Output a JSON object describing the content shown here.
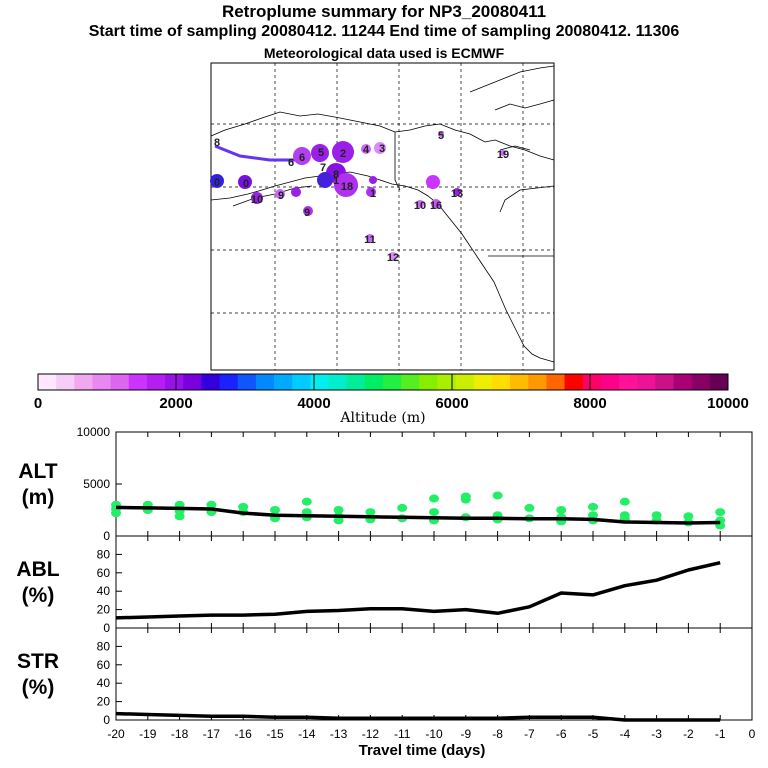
{
  "title": {
    "line1": "Retroplume summary for NP3_20080411",
    "line2": "Start time of sampling 20080412. 11244     End time of sampling 20080412. 11306",
    "line3": "Meteorological data used is ECMWF"
  },
  "colors": {
    "alt_points": "#22ee66",
    "line": "#000000",
    "plume_purple": "#a020f0",
    "plume_violet": "#cc33ff",
    "plume_blue": "#4422dd"
  },
  "chart_data": [
    {
      "type": "map",
      "title": "Plume centroid positions",
      "labels": [
        {
          "text": "0"
        },
        {
          "text": "0"
        },
        {
          "text": "1"
        },
        {
          "text": "1"
        },
        {
          "text": "2"
        },
        {
          "text": "3"
        },
        {
          "text": "4"
        },
        {
          "text": "5"
        },
        {
          "text": "5"
        },
        {
          "text": "6"
        },
        {
          "text": "6"
        },
        {
          "text": "7"
        },
        {
          "text": "8"
        },
        {
          "text": "8"
        },
        {
          "text": "9"
        },
        {
          "text": "9"
        },
        {
          "text": "10"
        },
        {
          "text": "10"
        },
        {
          "text": "11"
        },
        {
          "text": "12"
        },
        {
          "text": "13"
        },
        {
          "text": "16"
        },
        {
          "text": "18"
        },
        {
          "text": "19"
        }
      ]
    },
    {
      "type": "colorbar",
      "xlabel": "Altitude (m)",
      "range": [
        0,
        10000
      ],
      "ticks": [
        "0",
        "2000",
        "4000",
        "6000",
        "8000",
        "10000"
      ],
      "colors": [
        "#ffe8ff",
        "#f8ccf8",
        "#f0a8f0",
        "#e888f0",
        "#dc66ee",
        "#cc33ff",
        "#b41ef0",
        "#9a10e8",
        "#7a00e0",
        "#3300dd",
        "#1a22ff",
        "#1155ff",
        "#0088ff",
        "#00aaff",
        "#00ccff",
        "#00eeee",
        "#00eecc",
        "#00ee99",
        "#00ee66",
        "#22ee44",
        "#55ee22",
        "#88ee00",
        "#aaee00",
        "#ccee00",
        "#eeee00",
        "#ffdd00",
        "#ffbb00",
        "#ff9900",
        "#ff6600",
        "#ff0000",
        "#ff0066",
        "#ff0088",
        "#ff1199",
        "#ee1199",
        "#cc1188",
        "#aa0077",
        "#880066",
        "#660055"
      ]
    },
    {
      "type": "scatter+line",
      "ylabel": "ALT",
      "yunit": "(m)",
      "ylim": [
        0,
        10000
      ],
      "yticks": [
        "0",
        "5000",
        "10000"
      ],
      "x": [
        -20,
        -19,
        -18,
        -17,
        -16,
        -15,
        -14,
        -13,
        -12,
        -11,
        -10,
        -9,
        -8,
        -7,
        -6,
        -5,
        -4,
        -3,
        -2,
        -1
      ],
      "line_values": [
        2750,
        2700,
        2650,
        2600,
        2200,
        2000,
        1950,
        1900,
        1850,
        1800,
        1750,
        1700,
        1700,
        1650,
        1650,
        1600,
        1350,
        1300,
        1250,
        1300
      ],
      "scatter": [
        {
          "x": -20,
          "values": [
            3000,
            2600,
            2200
          ]
        },
        {
          "x": -19,
          "values": [
            3000,
            2500
          ]
        },
        {
          "x": -18,
          "values": [
            3000,
            2400,
            1900
          ]
        },
        {
          "x": -17,
          "values": [
            3000,
            2300
          ]
        },
        {
          "x": -16,
          "values": [
            2800,
            2300
          ]
        },
        {
          "x": -15,
          "values": [
            2500,
            1700
          ]
        },
        {
          "x": -14,
          "values": [
            3300,
            2300,
            1800
          ]
        },
        {
          "x": -13,
          "values": [
            2500,
            1900,
            1500
          ]
        },
        {
          "x": -12,
          "values": [
            2300,
            1600
          ]
        },
        {
          "x": -11,
          "values": [
            2700,
            1700
          ]
        },
        {
          "x": -10,
          "values": [
            3600,
            2300,
            1500
          ]
        },
        {
          "x": -9,
          "values": [
            3800,
            3500,
            1800
          ]
        },
        {
          "x": -8,
          "values": [
            3900,
            2000,
            1600
          ]
        },
        {
          "x": -7,
          "values": [
            2700,
            1700
          ]
        },
        {
          "x": -6,
          "values": [
            2500,
            1800,
            1400
          ]
        },
        {
          "x": -5,
          "values": [
            2800,
            2000,
            1500
          ]
        },
        {
          "x": -4,
          "values": [
            3300,
            2000,
            1600
          ]
        },
        {
          "x": -3,
          "values": [
            2000,
            1500
          ]
        },
        {
          "x": -2,
          "values": [
            1900,
            1300
          ]
        },
        {
          "x": -1,
          "values": [
            2300,
            1500,
            1000
          ]
        }
      ]
    },
    {
      "type": "line",
      "ylabel": "ABL",
      "yunit": "(%)",
      "ylim": [
        0,
        100
      ],
      "yticks": [
        "0",
        "20",
        "40",
        "60",
        "80"
      ],
      "x": [
        -20,
        -19,
        -18,
        -17,
        -16,
        -15,
        -14,
        -13,
        -12,
        -11,
        -10,
        -9,
        -8,
        -7,
        -6,
        -5,
        -4,
        -3,
        -2,
        -1
      ],
      "values": [
        11,
        12,
        13,
        14,
        14,
        15,
        18,
        19,
        21,
        21,
        18,
        20,
        16,
        23,
        38,
        36,
        46,
        52,
        63,
        71
      ]
    },
    {
      "type": "line",
      "ylabel": "STR",
      "yunit": "(%)",
      "ylim": [
        0,
        100
      ],
      "yticks": [
        "0",
        "20",
        "40",
        "60",
        "80"
      ],
      "x": [
        -20,
        -19,
        -18,
        -17,
        -16,
        -15,
        -14,
        -13,
        -12,
        -11,
        -10,
        -9,
        -8,
        -7,
        -6,
        -5,
        -4,
        -3,
        -2,
        -1
      ],
      "values": [
        7,
        6,
        5,
        4,
        4,
        3,
        3,
        2,
        2,
        2,
        2,
        2,
        2,
        3,
        3,
        3,
        0,
        0,
        0,
        0
      ],
      "xlabel": "Travel time (days)",
      "xticks": [
        "-20",
        "-19",
        "-18",
        "-17",
        "-16",
        "-15",
        "-14",
        "-13",
        "-12",
        "-11",
        "-10",
        "-9",
        "-8",
        "-7",
        "-6",
        "-5",
        "-4",
        "-3",
        "-2",
        "-1",
        "0"
      ]
    }
  ]
}
